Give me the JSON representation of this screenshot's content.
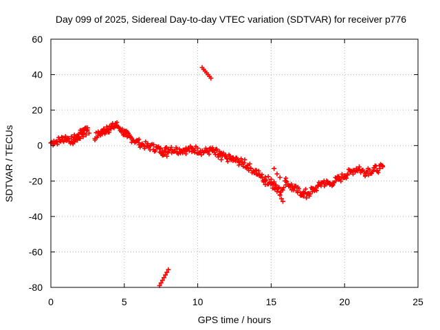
{
  "chart_data": {
    "type": "scatter",
    "title": "Day 099 of 2025, Sidereal Day-to-day VTEC variation (SDTVAR) for receiver p776",
    "xlabel": "GPS time / hours",
    "ylabel": "SDTVAR / TECUs",
    "xlim": [
      0,
      25
    ],
    "ylim": [
      -80,
      60
    ],
    "xticks": [
      0,
      5,
      10,
      15,
      20,
      25
    ],
    "yticks": [
      -80,
      -60,
      -40,
      -20,
      0,
      20,
      40,
      60
    ],
    "grid": true,
    "marker": "+",
    "colors": {
      "series": "#ff0000",
      "grid": "#b0b0b0",
      "axis": "#000000"
    },
    "series": [
      {
        "name": "SDTVAR",
        "points": [
          [
            0.0,
            1.5
          ],
          [
            0.2,
            2.5
          ],
          [
            0.4,
            2.0
          ],
          [
            0.6,
            3.5
          ],
          [
            0.8,
            3.0
          ],
          [
            1.0,
            4.5
          ],
          [
            1.2,
            4.0
          ],
          [
            1.4,
            2.5
          ],
          [
            1.5,
            1.0
          ],
          [
            1.6,
            2.0
          ],
          [
            1.7,
            3.5
          ],
          [
            1.8,
            5.5
          ],
          [
            1.9,
            6.5
          ],
          [
            2.0,
            7.5
          ],
          [
            2.1,
            8.5
          ],
          [
            2.2,
            9.0
          ],
          [
            2.3,
            9.5
          ],
          [
            2.4,
            10.0
          ],
          [
            2.5,
            10.0
          ],
          [
            1.6,
            4.5
          ],
          [
            1.8,
            3.0
          ],
          [
            2.0,
            4.0
          ],
          [
            2.2,
            5.0
          ],
          [
            2.4,
            6.0
          ],
          [
            2.6,
            7.0
          ],
          [
            3.0,
            4.0
          ],
          [
            3.2,
            5.5
          ],
          [
            3.3,
            7.0
          ],
          [
            3.4,
            8.0
          ],
          [
            3.5,
            6.5
          ],
          [
            3.6,
            9.5
          ],
          [
            3.7,
            8.0
          ],
          [
            3.8,
            10.5
          ],
          [
            3.9,
            9.0
          ],
          [
            4.0,
            11.0
          ],
          [
            4.1,
            9.5
          ],
          [
            4.2,
            12.0
          ],
          [
            4.3,
            10.0
          ],
          [
            4.4,
            12.5
          ],
          [
            4.5,
            11.0
          ],
          [
            4.6,
            10.5
          ],
          [
            4.7,
            9.5
          ],
          [
            4.8,
            8.5
          ],
          [
            4.9,
            7.5
          ],
          [
            5.0,
            6.5
          ],
          [
            5.1,
            6.0
          ],
          [
            5.2,
            5.0
          ],
          [
            5.3,
            5.5
          ],
          [
            5.4,
            4.5
          ],
          [
            5.6,
            3.0
          ],
          [
            5.8,
            2.5
          ],
          [
            6.0,
            1.5
          ],
          [
            6.2,
            0.5
          ],
          [
            6.4,
            -0.5
          ],
          [
            6.6,
            -0.5
          ],
          [
            6.8,
            0.0
          ],
          [
            7.0,
            0.5
          ],
          [
            7.2,
            -1.0
          ],
          [
            7.4,
            -2.0
          ],
          [
            7.5,
            -4.0
          ],
          [
            7.6,
            -3.0
          ],
          [
            7.7,
            -5.0
          ],
          [
            7.8,
            -3.5
          ],
          [
            7.9,
            -6.0
          ],
          [
            8.0,
            -2.0
          ],
          [
            8.2,
            -1.0
          ],
          [
            8.4,
            -3.0
          ],
          [
            8.6,
            -2.0
          ],
          [
            8.8,
            -3.5
          ],
          [
            9.0,
            -2.5
          ],
          [
            9.2,
            -3.0
          ],
          [
            9.4,
            -2.0
          ],
          [
            9.6,
            -3.5
          ],
          [
            9.8,
            -2.5
          ],
          [
            10.0,
            -1.5
          ],
          [
            10.2,
            -3.0
          ],
          [
            10.4,
            -4.0
          ],
          [
            10.6,
            -3.0
          ],
          [
            10.8,
            -2.0
          ],
          [
            11.0,
            -3.0
          ],
          [
            11.2,
            -5.0
          ],
          [
            11.4,
            -6.5
          ],
          [
            11.6,
            -8.0
          ],
          [
            11.3,
            -2.0
          ],
          [
            11.5,
            -3.5
          ],
          [
            11.7,
            -5.0
          ],
          [
            11.9,
            -6.0
          ],
          [
            12.0,
            -7.5
          ],
          [
            12.2,
            -6.0
          ],
          [
            12.4,
            -8.5
          ],
          [
            12.6,
            -7.0
          ],
          [
            12.8,
            -9.0
          ],
          [
            13.0,
            -10.5
          ],
          [
            13.2,
            -8.0
          ],
          [
            13.4,
            -11.0
          ],
          [
            13.6,
            -13.0
          ],
          [
            13.8,
            -14.5
          ],
          [
            14.0,
            -15.5
          ],
          [
            14.2,
            -17.0
          ],
          [
            14.4,
            -18.0
          ],
          [
            14.5,
            -20.5
          ],
          [
            14.6,
            -22.0
          ],
          [
            14.8,
            -17.5
          ],
          [
            15.0,
            -19.0
          ],
          [
            15.1,
            -24.0
          ],
          [
            15.2,
            -20.5
          ],
          [
            15.3,
            -22.5
          ],
          [
            15.4,
            -26.0
          ],
          [
            15.5,
            -24.0
          ],
          [
            15.6,
            -28.0
          ],
          [
            15.7,
            -30.0
          ],
          [
            15.8,
            -31.5
          ],
          [
            15.2,
            -13.0
          ],
          [
            15.4,
            -16.0
          ],
          [
            15.6,
            -18.0
          ],
          [
            16.0,
            -20.0
          ],
          [
            16.2,
            -23.0
          ],
          [
            16.4,
            -25.0
          ],
          [
            16.6,
            -24.0
          ],
          [
            16.8,
            -26.5
          ],
          [
            17.0,
            -28.0
          ],
          [
            17.2,
            -27.0
          ],
          [
            17.4,
            -29.5
          ],
          [
            17.6,
            -28.5
          ],
          [
            17.8,
            -26.0
          ],
          [
            18.0,
            -25.0
          ],
          [
            18.2,
            -23.0
          ],
          [
            18.4,
            -21.0
          ],
          [
            18.6,
            -20.0
          ],
          [
            18.8,
            -21.5
          ],
          [
            19.0,
            -22.0
          ],
          [
            19.2,
            -21.0
          ],
          [
            19.4,
            -20.0
          ],
          [
            19.6,
            -19.0
          ],
          [
            19.8,
            -18.0
          ],
          [
            20.0,
            -17.0
          ],
          [
            20.2,
            -16.0
          ],
          [
            20.4,
            -15.0
          ],
          [
            20.6,
            -14.0
          ],
          [
            20.8,
            -13.0
          ],
          [
            21.0,
            -12.0
          ],
          [
            21.2,
            -14.0
          ],
          [
            21.4,
            -16.0
          ],
          [
            21.6,
            -13.0
          ],
          [
            21.8,
            -15.5
          ],
          [
            22.0,
            -12.5
          ],
          [
            22.2,
            -14.0
          ],
          [
            22.4,
            -13.0
          ],
          [
            22.6,
            -12.0
          ],
          [
            10.3,
            44.0
          ],
          [
            10.4,
            43.0
          ],
          [
            10.5,
            42.0
          ],
          [
            10.6,
            41.0
          ],
          [
            10.7,
            40.0
          ],
          [
            10.8,
            39.0
          ],
          [
            10.9,
            38.0
          ],
          [
            7.4,
            -79.0
          ],
          [
            7.5,
            -77.5
          ],
          [
            7.6,
            -76.0
          ],
          [
            7.7,
            -74.5
          ],
          [
            7.8,
            -73.0
          ],
          [
            7.9,
            -71.5
          ],
          [
            8.0,
            -70.0
          ]
        ],
        "bands": [
          {
            "x": [
              0.0,
              0.6,
              1.0,
              1.4,
              1.8,
              2.2,
              2.5
            ],
            "y": [
              1.5,
              3.0,
              4.5,
              3.0,
              5.0,
              8.0,
              9.5
            ]
          },
          {
            "x": [
              3.0,
              3.6,
              4.2,
              4.5,
              5.0,
              5.5,
              6.0
            ],
            "y": [
              5.0,
              8.0,
              10.5,
              11.5,
              7.0,
              4.0,
              1.5
            ]
          },
          {
            "x": [
              6.0,
              6.6,
              7.2,
              7.6,
              8.0,
              8.6,
              9.2,
              9.8,
              10.4,
              11.0
            ],
            "y": [
              1.5,
              -0.5,
              -1.5,
              -3.5,
              -2.0,
              -2.5,
              -2.5,
              -2.0,
              -3.5,
              -3.0
            ]
          },
          {
            "x": [
              11.0,
              11.6,
              12.2,
              12.8,
              13.4,
              14.0,
              14.6,
              15.2
            ],
            "y": [
              -3.0,
              -6.0,
              -7.5,
              -9.0,
              -11.5,
              -15.0,
              -19.5,
              -21.5
            ]
          },
          {
            "x": [
              15.2,
              15.6,
              16.0,
              16.6,
              17.2,
              17.8,
              18.4
            ],
            "y": [
              -22.0,
              -26.0,
              -20.0,
              -24.5,
              -27.0,
              -25.5,
              -22.0
            ]
          },
          {
            "x": [
              18.4,
              19.0,
              19.6,
              20.2,
              20.8,
              21.4,
              22.0,
              22.6
            ],
            "y": [
              -21.0,
              -21.5,
              -19.0,
              -16.0,
              -13.0,
              -15.0,
              -13.5,
              -12.5
            ]
          }
        ]
      }
    ]
  }
}
